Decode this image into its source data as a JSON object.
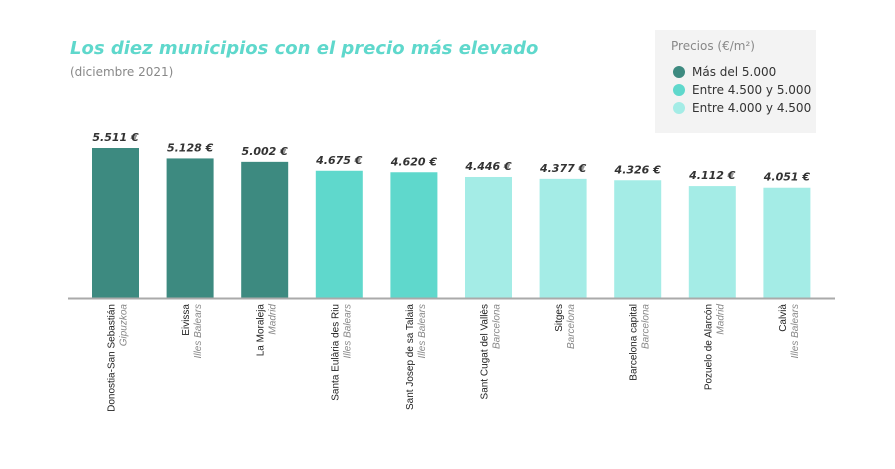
{
  "chart_data": {
    "type": "bar",
    "title": "Los diez municipios con el precio más elevado",
    "subtitle": "(diciembre 2021)",
    "categories": [
      "Donostia-San Sebastián",
      "Eivissa",
      "La Moraleja",
      "Santa Eulària des Riu",
      "Sant Josep de sa Talaia",
      "Sant Cugat del Vallès",
      "Sitges",
      "Barcelona capital",
      "Pozuelo de Alarcón",
      "Calvià"
    ],
    "regions": [
      "Gipuzkoa",
      "Illes Balears",
      "Madrid",
      "Illes Balears",
      "Illes Balears",
      "Barcelona",
      "Barcelona",
      "Barcelona",
      "Madrid",
      "Illes Balears"
    ],
    "values": [
      5511,
      5128,
      5002,
      4675,
      4620,
      4446,
      4377,
      4326,
      4112,
      4051
    ],
    "value_labels": [
      "5.511 €",
      "5.128 €",
      "5.002 €",
      "4.675 €",
      "4.620 €",
      "4.446 €",
      "4.377 €",
      "4.326 €",
      "4.112 €",
      "4.051 €"
    ],
    "groups": [
      0,
      0,
      0,
      1,
      1,
      2,
      2,
      2,
      2,
      2
    ],
    "ylim": [
      0,
      5511
    ],
    "grid": false,
    "legend": {
      "title": "Precios (€/m²)",
      "placement": "top-right",
      "items": [
        {
          "label": "Más del 5.000",
          "color": "#3d8a80"
        },
        {
          "label": "Entre 4.500 y 5.000",
          "color": "#5fd8cc"
        },
        {
          "label": "Entre 4.000 y 4.500",
          "color": "#a4ece6"
        }
      ]
    }
  }
}
